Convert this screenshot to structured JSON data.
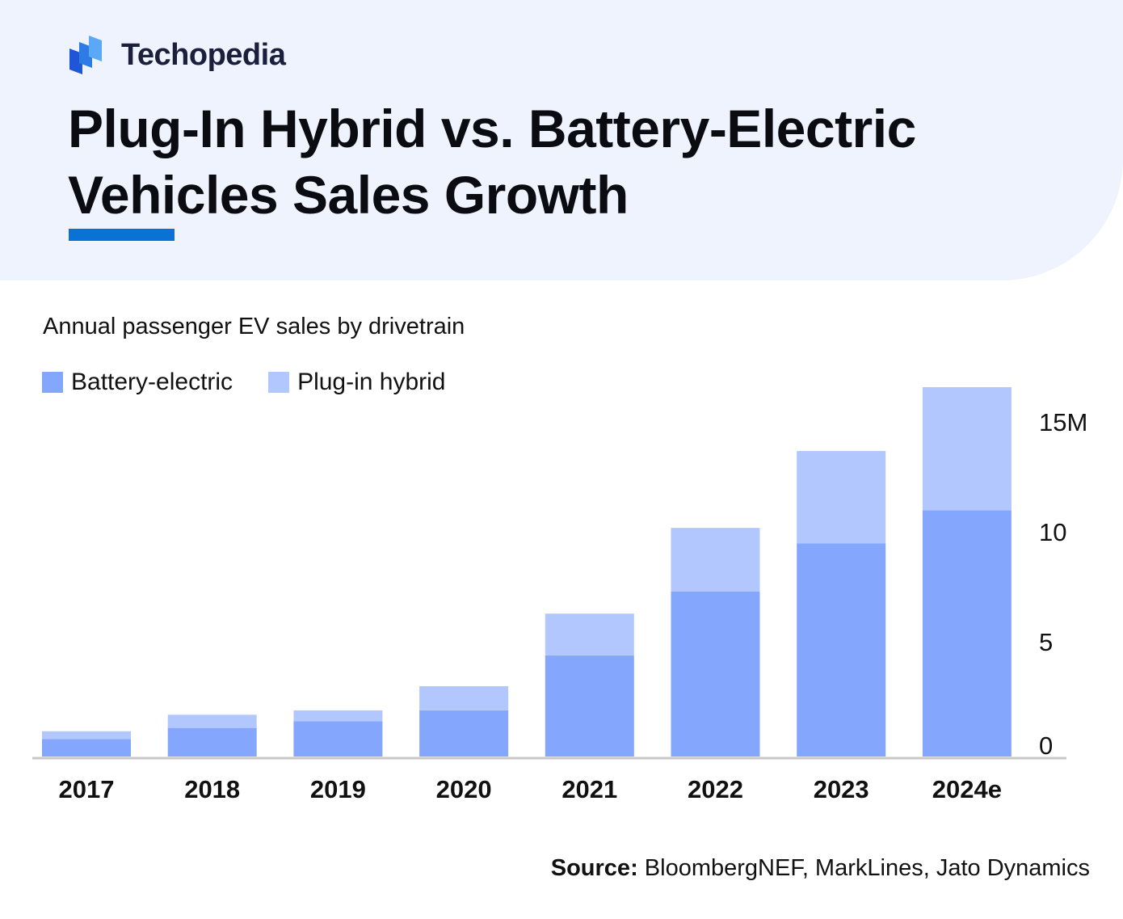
{
  "brand": {
    "name": "Techopedia"
  },
  "colors": {
    "battery_electric": "#84a7fd",
    "plug_in_hybrid": "#b2c7fd",
    "accent": "#0a72d4",
    "header_bg": "#eef3fd",
    "axis": "#c8c8c8"
  },
  "header": {
    "title": "Plug-In Hybrid vs. Battery-Electric Vehicles Sales Growth"
  },
  "chart_data": {
    "type": "bar",
    "stacked": true,
    "title": "Plug-In Hybrid vs. Battery-Electric Vehicles Sales Growth",
    "subtitle": "Annual passenger EV sales by drivetrain",
    "categories": [
      "2017",
      "2018",
      "2019",
      "2020",
      "2021",
      "2022",
      "2023",
      "2024e"
    ],
    "series": [
      {
        "name": "Battery-electric",
        "color": "#84a7fd",
        "values": [
          0.8,
          1.3,
          1.6,
          2.1,
          4.6,
          7.5,
          9.7,
          11.2
        ]
      },
      {
        "name": "Plug-in hybrid",
        "color": "#b2c7fd",
        "values": [
          0.35,
          0.6,
          0.5,
          1.1,
          1.9,
          2.9,
          4.2,
          5.6
        ]
      }
    ],
    "yaxis": {
      "position": "right",
      "ticks": [
        0,
        5,
        10,
        15
      ],
      "tick_labels": [
        "0",
        "5",
        "10",
        "15M"
      ],
      "ylim": [
        0,
        17
      ]
    },
    "legend_position": "top-left",
    "grid": false
  },
  "source": {
    "label": "Source:",
    "text": " BloombergNEF, MarkLines, Jato Dynamics"
  }
}
